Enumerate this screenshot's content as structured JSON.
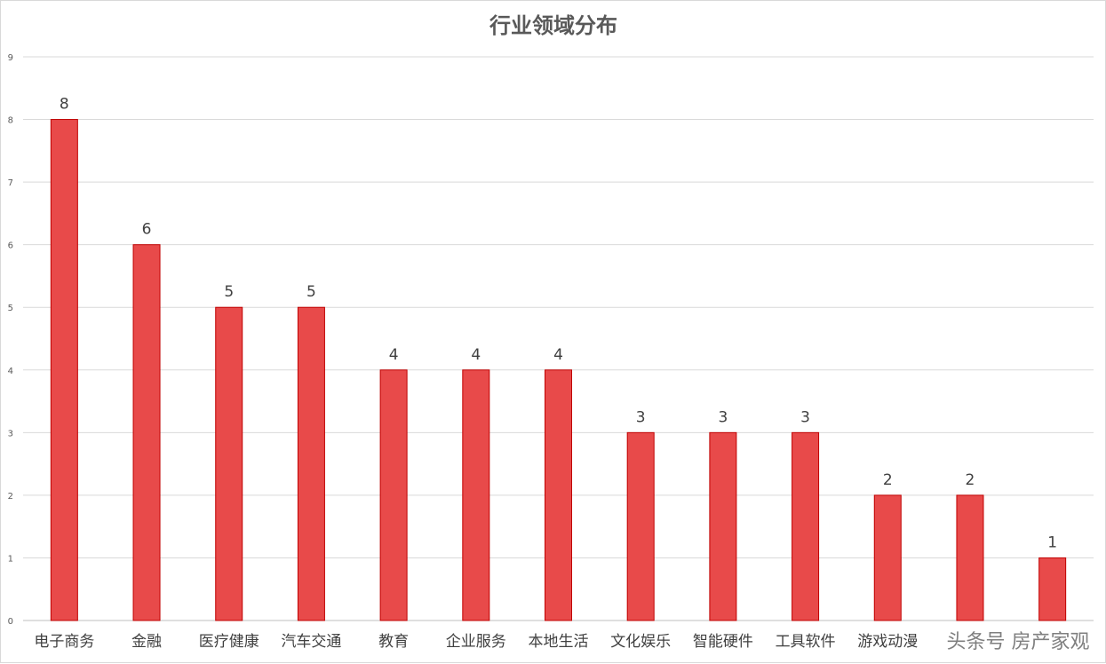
{
  "chart_data": {
    "type": "bar",
    "title": "行业领域分布",
    "categories": [
      "电子商务",
      "金融",
      "医疗健康",
      "汽车交通",
      "教育",
      "企业服务",
      "本地生活",
      "文化娱乐",
      "智能硬件",
      "工具软件",
      "游戏动漫",
      "",
      ""
    ],
    "values": [
      8,
      6,
      5,
      5,
      4,
      4,
      4,
      3,
      3,
      3,
      2,
      2,
      1
    ],
    "ylim": [
      0,
      9
    ],
    "yticks": [
      0,
      1,
      2,
      3,
      4,
      5,
      6,
      7,
      8,
      9
    ],
    "grid": true,
    "data_labels": true,
    "xlabel": "",
    "ylabel": "",
    "bar_color": "#e84a4a",
    "bar_border": "#c00000"
  },
  "watermark": "头条号 房产家观"
}
